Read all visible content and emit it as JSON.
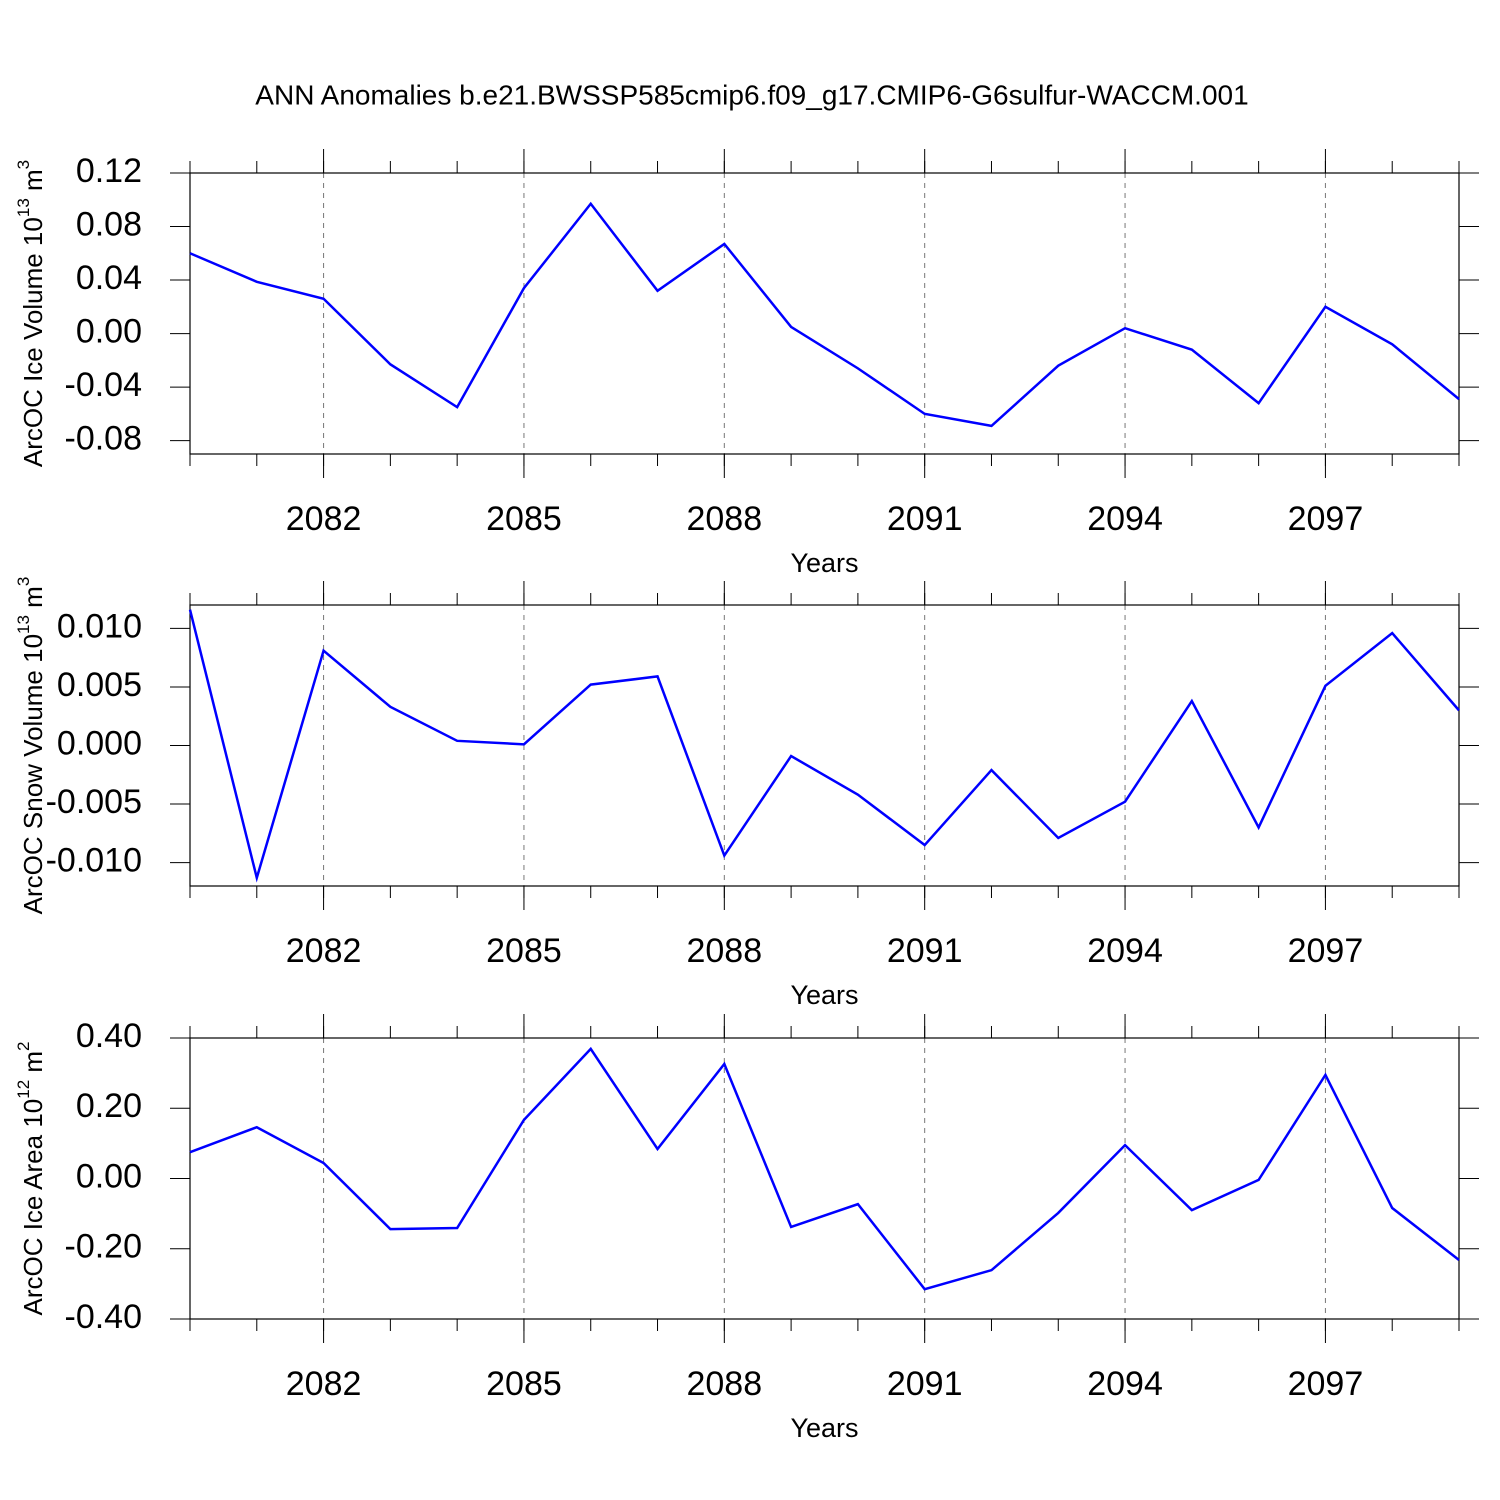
{
  "chart_data": [
    {
      "type": "line",
      "title": "ANN Anomalies b.e21.BWSSP585cmip6.f09_g17.CMIP6-G6sulfur-WACCM.001",
      "xlabel": "Years",
      "ylabel": [
        "ArcOC Ice Volume 10",
        "13",
        " m",
        "3"
      ],
      "x": [
        2080,
        2081,
        2082,
        2083,
        2084,
        2085,
        2086,
        2087,
        2088,
        2089,
        2090,
        2091,
        2092,
        2093,
        2094,
        2095,
        2096,
        2097,
        2098,
        2099
      ],
      "series": [
        {
          "color": "#0000ff",
          "values": [
            0.06,
            0.0387,
            0.026,
            -0.023,
            -0.055,
            0.034,
            0.097,
            0.032,
            0.067,
            0.005,
            -0.026,
            -0.06,
            -0.069,
            -0.024,
            0.004,
            -0.012,
            -0.052,
            0.02,
            -0.008,
            -0.049
          ]
        }
      ],
      "xlim": [
        2080,
        2099
      ],
      "xticks": [
        2082,
        2085,
        2088,
        2091,
        2094,
        2097
      ],
      "ylim": [
        -0.09,
        0.12
      ],
      "yticks": [
        0.12,
        0.08,
        0.04,
        {
          "value": 0,
          "label": "0.00"
        },
        -0.04,
        -0.08
      ],
      "xgrid": true
    },
    {
      "type": "line",
      "xlabel": "Years",
      "ylabel": [
        "ArcOC Snow Volume 10",
        "13",
        " m",
        "3"
      ],
      "x": [
        2080,
        2081,
        2082,
        2083,
        2084,
        2085,
        2086,
        2087,
        2088,
        2089,
        2090,
        2091,
        2092,
        2093,
        2094,
        2095,
        2096,
        2097,
        2098,
        2099
      ],
      "series": [
        {
          "color": "#0000ff",
          "values": [
            0.0116,
            -0.0113,
            0.0081,
            0.0033,
            0.0004,
            0.0001,
            0.0052,
            0.0059,
            -0.0094,
            -0.0009,
            -0.0042,
            -0.0085,
            -0.0021,
            -0.0079,
            -0.0048,
            0.0038,
            -0.007,
            0.0051,
            0.0096,
            0.003
          ]
        }
      ],
      "xlim": [
        2080,
        2099
      ],
      "xticks": [
        2082,
        2085,
        2088,
        2091,
        2094,
        2097
      ],
      "ylim": [
        -0.012,
        0.012
      ],
      "yticks": [
        {
          "value": 0.01,
          "label": "0.010"
        },
        0.005,
        {
          "value": 0,
          "label": "0.000"
        },
        -0.005,
        {
          "value": -0.01,
          "label": "-0.010"
        }
      ],
      "xgrid": true
    },
    {
      "type": "line",
      "xlabel": "Years",
      "ylabel": [
        "ArcOC Ice Area 10",
        "12",
        " m",
        "2"
      ],
      "x": [
        2080,
        2081,
        2082,
        2083,
        2084,
        2085,
        2086,
        2087,
        2088,
        2089,
        2090,
        2091,
        2092,
        2093,
        2094,
        2095,
        2096,
        2097,
        2098,
        2099
      ],
      "series": [
        {
          "color": "#0000ff",
          "values": [
            0.075,
            0.146,
            0.044,
            -0.144,
            -0.141,
            0.167,
            0.369,
            0.084,
            0.326,
            -0.138,
            -0.073,
            -0.315,
            -0.261,
            -0.098,
            0.095,
            -0.09,
            -0.004,
            0.295,
            -0.084,
            -0.232
          ]
        }
      ],
      "xlim": [
        2080,
        2099
      ],
      "xticks": [
        2082,
        2085,
        2088,
        2091,
        2094,
        2097
      ],
      "ylim": [
        -0.4,
        0.4
      ],
      "yticks": [
        {
          "value": 0.4,
          "label": "0.40"
        },
        {
          "value": 0.2,
          "label": "0.20"
        },
        {
          "value": 0,
          "label": "0.00"
        },
        {
          "value": -0.2,
          "label": "-0.20"
        },
        {
          "value": -0.4,
          "label": "-0.40"
        }
      ],
      "xgrid": true
    }
  ]
}
